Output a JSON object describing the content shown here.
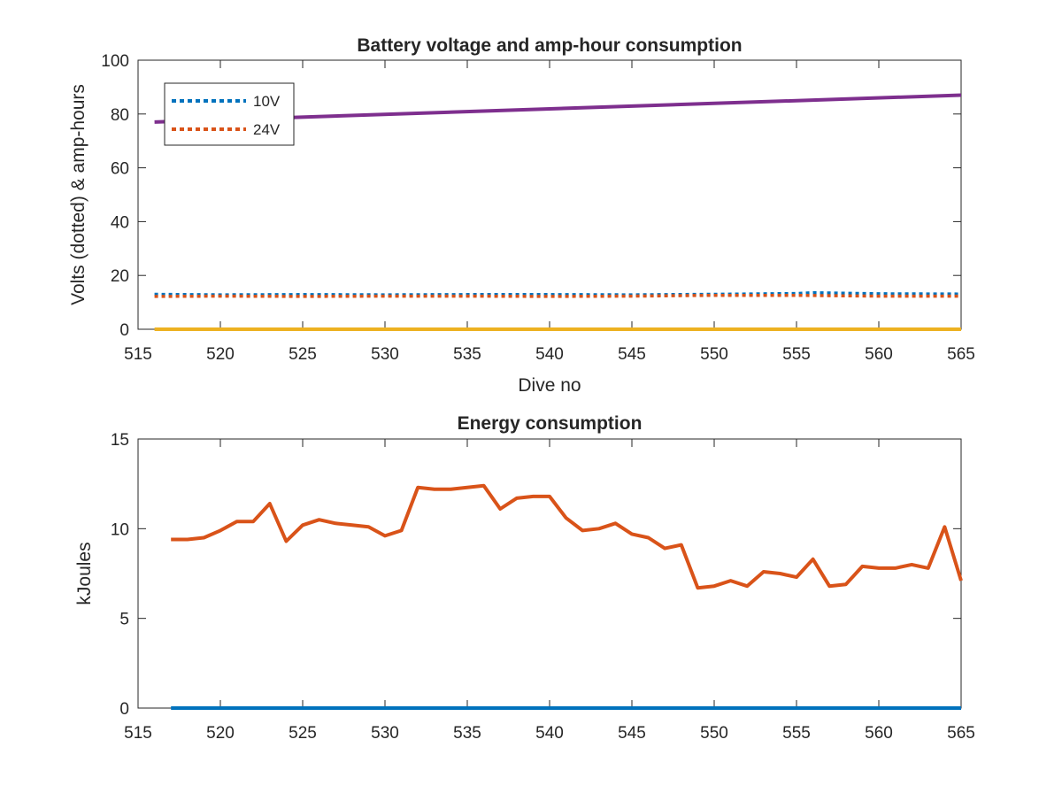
{
  "chart_data": [
    {
      "type": "line",
      "title": "Battery voltage and amp-hour consumption",
      "xlabel": "Dive no",
      "ylabel": "Volts (dotted) & amp-hours",
      "xlim": [
        515,
        565
      ],
      "ylim": [
        0,
        100
      ],
      "xticks": [
        515,
        520,
        525,
        530,
        535,
        540,
        545,
        550,
        555,
        560,
        565
      ],
      "yticks": [
        0,
        20,
        40,
        60,
        80,
        100
      ],
      "grid": false,
      "legend": {
        "position": "top-left",
        "entries": [
          "10V",
          "24V"
        ]
      },
      "series": [
        {
          "name": "10V",
          "color": "#0072BD",
          "style": "dotted",
          "x": [
            516,
            520,
            525,
            530,
            535,
            540,
            545,
            550,
            555,
            556,
            560,
            565
          ],
          "y": [
            13,
            12.8,
            12.9,
            12.8,
            12.9,
            12.9,
            12.8,
            13,
            13.3,
            13.6,
            13.2,
            13.1
          ]
        },
        {
          "name": "24V",
          "color": "#D95319",
          "style": "dotted",
          "x": [
            516,
            520,
            525,
            530,
            535,
            540,
            545,
            550,
            555,
            560,
            565
          ],
          "y": [
            12.2,
            12.3,
            12.2,
            12.3,
            12.3,
            12.2,
            12.3,
            12.6,
            12.6,
            12.3,
            12.3
          ]
        },
        {
          "color": "#EDB120",
          "style": "solid",
          "x": [
            516,
            565
          ],
          "y": [
            0,
            0
          ]
        },
        {
          "color": "#7E2F8E",
          "style": "solid",
          "x": [
            516,
            565
          ],
          "y": [
            77,
            87
          ]
        }
      ]
    },
    {
      "type": "line",
      "title": "Energy consumption",
      "xlabel": "",
      "ylabel": "kJoules",
      "xlim": [
        515,
        565
      ],
      "ylim": [
        0,
        15
      ],
      "xticks": [
        515,
        520,
        525,
        530,
        535,
        540,
        545,
        550,
        555,
        560,
        565
      ],
      "yticks": [
        0,
        5,
        10,
        15
      ],
      "grid": false,
      "series": [
        {
          "color": "#0072BD",
          "style": "solid",
          "x": [
            517,
            565
          ],
          "y": [
            0,
            0
          ]
        },
        {
          "color": "#D95319",
          "style": "solid",
          "x": [
            517,
            518,
            519,
            520,
            521,
            522,
            523,
            524,
            525,
            526,
            527,
            528,
            529,
            530,
            531,
            532,
            533,
            534,
            535,
            536,
            537,
            538,
            539,
            540,
            541,
            542,
            543,
            544,
            545,
            546,
            547,
            548,
            549,
            550,
            551,
            552,
            553,
            554,
            555,
            556,
            557,
            558,
            559,
            560,
            561,
            562,
            563,
            564,
            565
          ],
          "y": [
            9.4,
            9.4,
            9.5,
            9.9,
            10.4,
            10.4,
            11.4,
            9.3,
            10.2,
            10.5,
            10.3,
            10.2,
            10.1,
            9.6,
            9.9,
            12.3,
            12.2,
            12.2,
            12.3,
            12.4,
            11.1,
            11.7,
            11.8,
            11.8,
            10.6,
            9.9,
            10,
            10.3,
            9.7,
            9.5,
            8.9,
            9.1,
            6.7,
            6.8,
            7.1,
            6.8,
            7.6,
            7.5,
            7.3,
            8.3,
            6.8,
            6.9,
            7.9,
            7.8,
            7.8,
            8,
            7.8,
            10.1,
            7.1
          ]
        }
      ]
    }
  ]
}
